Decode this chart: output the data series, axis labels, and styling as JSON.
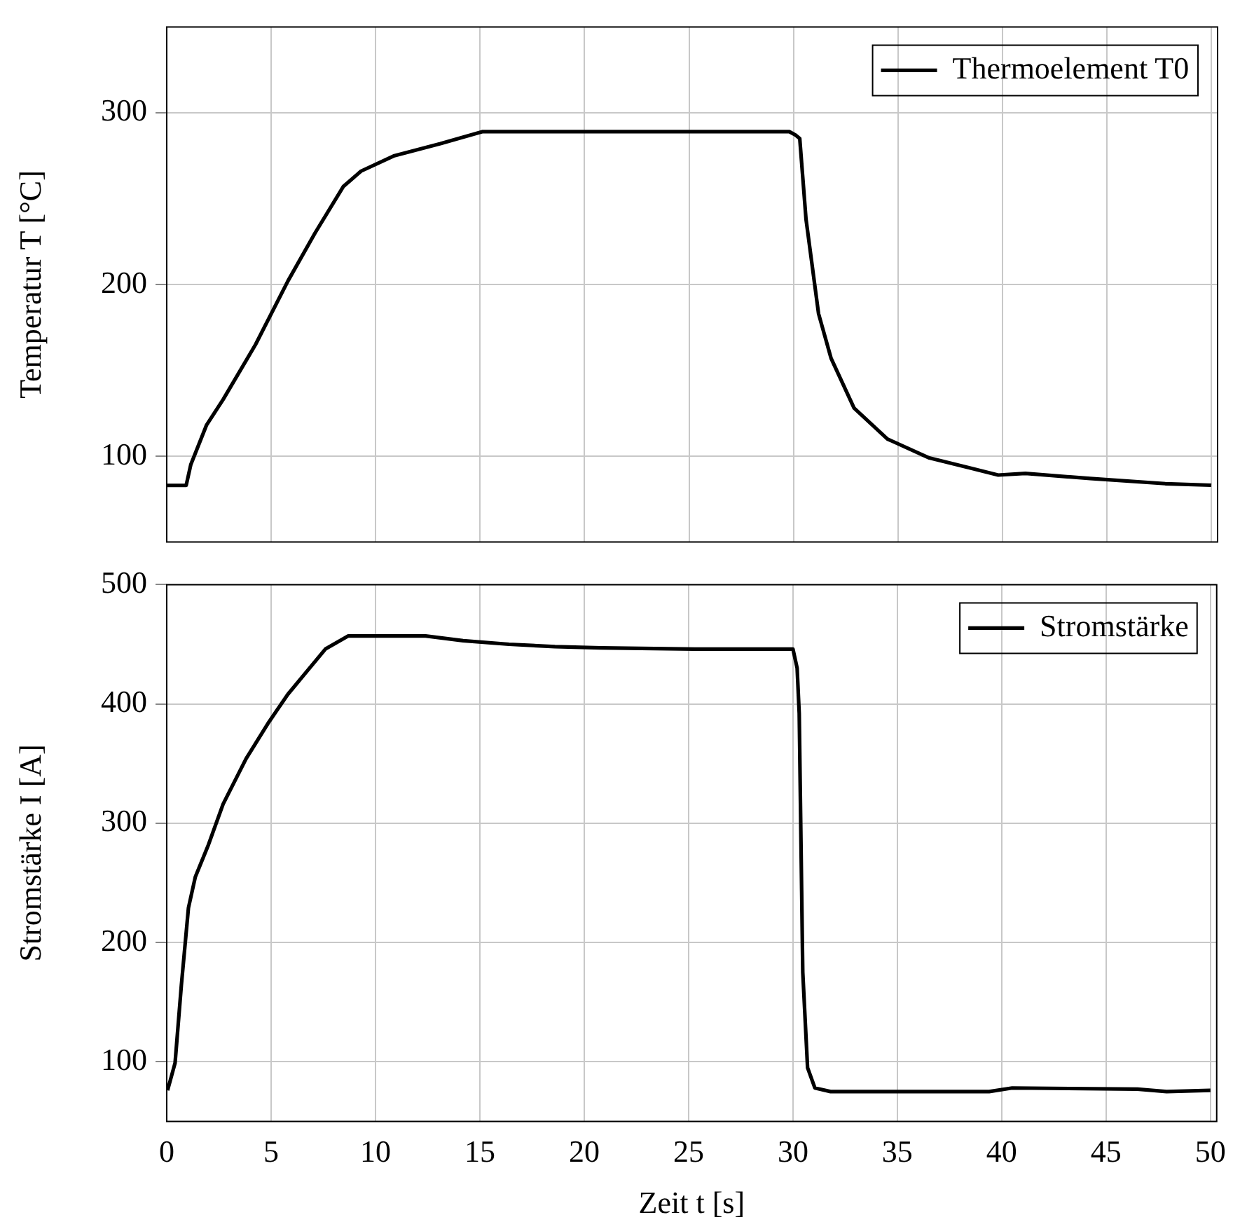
{
  "chart_data": [
    {
      "type": "line",
      "ylabel": "Temperatur T [°C]",
      "xlim": [
        0,
        50.3
      ],
      "xticks": [
        0,
        5,
        10,
        15,
        20,
        25,
        30,
        35,
        40,
        45,
        50
      ],
      "ylim": [
        50,
        350
      ],
      "yticks": [
        100,
        200,
        300
      ],
      "grid": true,
      "legend": "top right",
      "tick_labels": "y",
      "marker": "none",
      "line_style": "solid",
      "series": [
        {
          "name": "Thermoelement T0",
          "color": "#000000",
          "x": [
            0,
            0.93,
            1.15,
            1.9,
            2.7,
            4.25,
            5.8,
            7.1,
            8.45,
            9.3,
            10.9,
            13.1,
            15.1,
            20,
            25,
            29.8,
            30.1,
            30.3,
            30.6,
            31.2,
            31.8,
            32.9,
            34.5,
            36.5,
            38.5,
            39.8,
            41.1,
            44.2,
            47.8,
            50
          ],
          "values": [
            83,
            83,
            95,
            118,
            133,
            165,
            202,
            230,
            257,
            266,
            275,
            282,
            289,
            289,
            289,
            289,
            287,
            285,
            238,
            183,
            157,
            128,
            110,
            99,
            93,
            89,
            90,
            87,
            84,
            83.1
          ]
        }
      ]
    },
    {
      "type": "line",
      "xlabel": "Zeit t [s]",
      "ylabel": "Stromstärke I [A]",
      "xlim": [
        0,
        50.3
      ],
      "xticks": [
        0,
        5,
        10,
        15,
        20,
        25,
        30,
        35,
        40,
        45,
        50
      ],
      "ylim": [
        50,
        500
      ],
      "yticks": [
        100,
        200,
        300,
        400,
        500
      ],
      "grid": true,
      "legend": "top right",
      "marker": "none",
      "line_style": "solid",
      "series": [
        {
          "name": "Stromstärke",
          "color": "#000000",
          "x": [
            0.04,
            0.4,
            0.7,
            1.04,
            1.37,
            2.0,
            2.7,
            3.8,
            4.9,
            5.8,
            6.7,
            7.6,
            8.7,
            10.9,
            12.4,
            14.2,
            16.4,
            18.6,
            20.8,
            25.3,
            30.0,
            30.2,
            30.3,
            30.47,
            30.7,
            31.05,
            31.8,
            35.3,
            39.4,
            40.5,
            46.5,
            47.9,
            50
          ],
          "values": [
            76,
            99,
            164,
            229,
            255,
            282,
            316,
            354,
            385,
            408,
            427,
            446,
            457,
            457,
            457,
            453,
            450,
            448,
            447,
            446,
            446,
            430,
            392,
            175,
            95,
            78,
            75,
            75,
            75,
            78,
            77,
            75,
            76
          ]
        }
      ]
    }
  ]
}
